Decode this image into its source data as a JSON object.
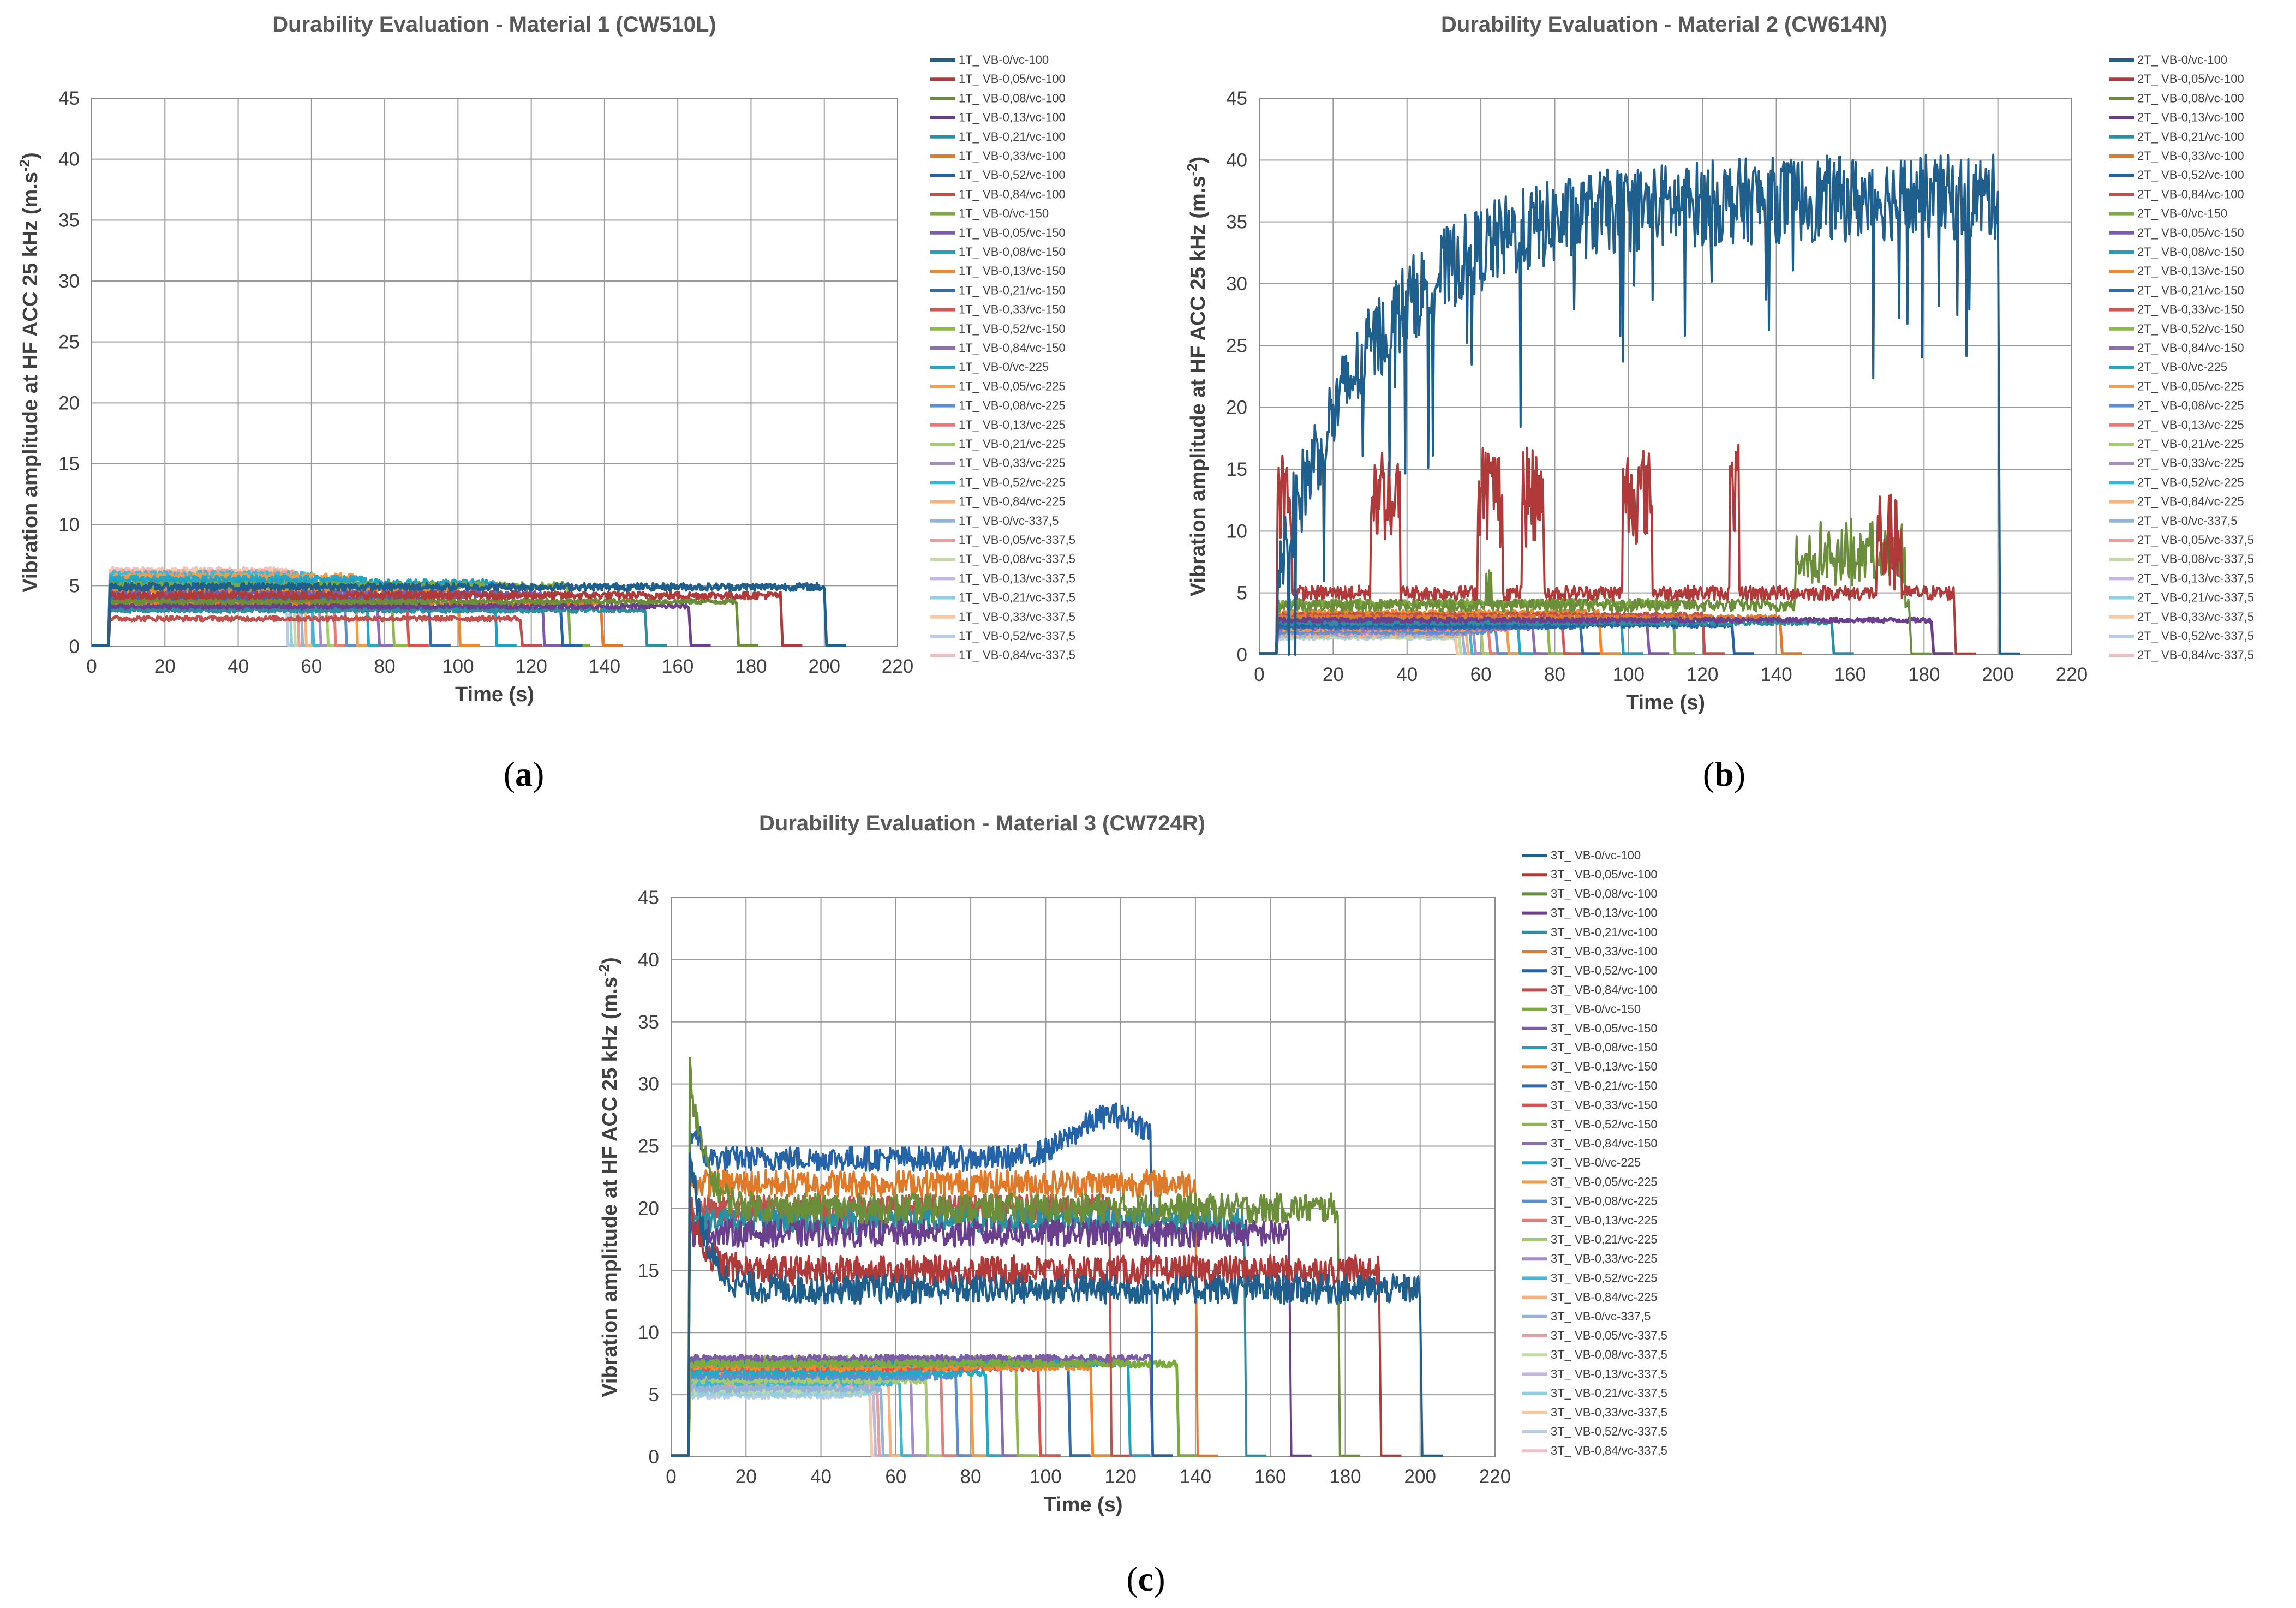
{
  "chart_data": [
    {
      "id": "a",
      "type": "line",
      "title": "Durability Evaluation - Material 1 (CW510L)",
      "xlabel": "Time (s)",
      "ylabel": "Vibration amplitude at HF ACC 25 kHz (m.s",
      "ylabel_sup": "-2",
      "ylabel_close": ")",
      "xlim": [
        0,
        220
      ],
      "ylim": [
        0,
        45
      ],
      "xticks": [
        0,
        20,
        40,
        60,
        80,
        100,
        120,
        140,
        160,
        180,
        200,
        220
      ],
      "yticks": [
        0,
        5,
        10,
        15,
        20,
        25,
        30,
        35,
        40,
        45
      ],
      "caption_open": "(",
      "caption_letter": "a",
      "caption_close": ")",
      "series": [
        {
          "name": "1T_ VB-0/vc-100",
          "color": "#1F5F8E",
          "start": 5,
          "end": 200,
          "level": 4.9
        },
        {
          "name": "1T_ VB-0,05/vc-100",
          "color": "#B03A3A",
          "start": 5,
          "end": 188,
          "level": 4.2
        },
        {
          "name": "1T_ VB-0,08/vc-100",
          "color": "#6A8E3A",
          "start": 5,
          "end": 176,
          "level": 3.7
        },
        {
          "name": "1T_ VB-0,13/vc-100",
          "color": "#6A3F8E",
          "start": 5,
          "end": 163,
          "level": 3.3
        },
        {
          "name": "1T_ VB-0,21/vc-100",
          "color": "#2A8FA0",
          "start": 5,
          "end": 151,
          "level": 3.0
        },
        {
          "name": "1T_ VB-0,33/vc-100",
          "color": "#E07A28",
          "start": 5,
          "end": 139,
          "level": 3.5
        },
        {
          "name": "1T_ VB-0,52/vc-100",
          "color": "#2563A8",
          "start": 5,
          "end": 128,
          "level": 3.1
        },
        {
          "name": "1T_ VB-0,84/vc-100",
          "color": "#C0504D",
          "start": 5,
          "end": 117,
          "level": 2.3
        },
        {
          "name": "1T_ VB-0/vc-150",
          "color": "#7BAA3F",
          "start": 5,
          "end": 130,
          "level": 5.0
        },
        {
          "name": "1T_ VB-0,05/vc-150",
          "color": "#7D5BA6",
          "start": 5,
          "end": 123,
          "level": 4.3
        },
        {
          "name": "1T_ VB-0,08/vc-150",
          "color": "#1FA0C0",
          "start": 5,
          "end": 110,
          "level": 5.2
        },
        {
          "name": "1T_ VB-0,13/vc-150",
          "color": "#F0892E",
          "start": 5,
          "end": 100,
          "level": 4.6
        },
        {
          "name": "1T_ VB-0,21/vc-150",
          "color": "#2F6DB0",
          "start": 5,
          "end": 92,
          "level": 4.0
        },
        {
          "name": "1T_ VB-0,33/vc-150",
          "color": "#D9534F",
          "start": 5,
          "end": 86,
          "level": 3.8
        },
        {
          "name": "1T_ VB-0,52/vc-150",
          "color": "#8DB84A",
          "start": 5,
          "end": 82,
          "level": 3.6
        },
        {
          "name": "1T_ VB-0,84/vc-150",
          "color": "#8E6BB8",
          "start": 5,
          "end": 78,
          "level": 3.2
        },
        {
          "name": "1T_ VB-0/vc-225",
          "color": "#22A8C8",
          "start": 5,
          "end": 75,
          "level": 5.5
        },
        {
          "name": "1T_ VB-0,05/vc-225",
          "color": "#F59A45",
          "start": 5,
          "end": 72,
          "level": 5.7
        },
        {
          "name": "1T_ VB-0,08/vc-225",
          "color": "#5B8FD0",
          "start": 5,
          "end": 69,
          "level": 5.0
        },
        {
          "name": "1T_ VB-0,13/vc-225",
          "color": "#E87A78",
          "start": 5,
          "end": 66,
          "level": 4.8
        },
        {
          "name": "1T_ VB-0,21/vc-225",
          "color": "#A5CC6B",
          "start": 5,
          "end": 64,
          "level": 4.4
        },
        {
          "name": "1T_ VB-0,33/vc-225",
          "color": "#A58CC8",
          "start": 5,
          "end": 62,
          "level": 4.1
        },
        {
          "name": "1T_ VB-0,52/vc-225",
          "color": "#3BB8D8",
          "start": 5,
          "end": 60,
          "level": 5.9
        },
        {
          "name": "1T_ VB-0,84/vc-225",
          "color": "#F8B27A",
          "start": 5,
          "end": 58,
          "level": 5.6
        },
        {
          "name": "1T_ VB-0/vc-337,5",
          "color": "#95B3D7",
          "start": 5,
          "end": 57,
          "level": 5.4
        },
        {
          "name": "1T_ VB-0,05/vc-337,5",
          "color": "#E6A0A0",
          "start": 5,
          "end": 56,
          "level": 6.0
        },
        {
          "name": "1T_ VB-0,08/vc-337,5",
          "color": "#C3DBA0",
          "start": 5,
          "end": 55,
          "level": 5.8
        },
        {
          "name": "1T_ VB-0,13/vc-337,5",
          "color": "#C5B5DA",
          "start": 5,
          "end": 55,
          "level": 5.5
        },
        {
          "name": "1T_ VB-0,21/vc-337,5",
          "color": "#8ECFE0",
          "start": 5,
          "end": 54,
          "level": 5.3
        },
        {
          "name": "1T_ VB-0,33/vc-337,5",
          "color": "#FAC8A0",
          "start": 5,
          "end": 54,
          "level": 6.1
        },
        {
          "name": "1T_ VB-0,52/vc-337,5",
          "color": "#B8CCE4",
          "start": 5,
          "end": 53,
          "level": 5.0
        },
        {
          "name": "1T_ VB-0,84/vc-337,5",
          "color": "#F0C0C0",
          "start": 5,
          "end": 53,
          "level": 6.2
        }
      ]
    },
    {
      "id": "b",
      "type": "line",
      "title": "Durability Evaluation - Material 2 (CW614N)",
      "xlabel": "Time (s)",
      "ylabel": "Vibration amplitude at HF ACC 25 kHz (m.s",
      "ylabel_sup": "-2",
      "ylabel_close": ")",
      "xlim": [
        0,
        220
      ],
      "ylim": [
        0,
        45
      ],
      "xticks": [
        0,
        20,
        40,
        60,
        80,
        100,
        120,
        140,
        160,
        180,
        200,
        220
      ],
      "yticks": [
        0,
        5,
        10,
        15,
        20,
        25,
        30,
        35,
        40,
        45
      ],
      "caption_open": "(",
      "caption_letter": "b",
      "caption_close": ")",
      "series": [
        {
          "name": "2T_ VB-0/vc-100",
          "color": "#1F5F8E",
          "start": 5,
          "end": 200,
          "level": 34,
          "profile": "rise"
        },
        {
          "name": "2T_ VB-0,05/vc-100",
          "color": "#B03A3A",
          "start": 5,
          "end": 188,
          "level": 5,
          "profile": "spiky",
          "amp": 8
        },
        {
          "name": "2T_ VB-0,08/vc-100",
          "color": "#6A8E3A",
          "start": 5,
          "end": 176,
          "level": 4,
          "profile": "burst",
          "amp": 6
        },
        {
          "name": "2T_ VB-0,13/vc-100",
          "color": "#6A3F8E",
          "start": 5,
          "end": 182,
          "level": 2.8
        },
        {
          "name": "2T_ VB-0,21/vc-100",
          "color": "#2A8FA0",
          "start": 5,
          "end": 155,
          "level": 2.6
        },
        {
          "name": "2T_ VB-0,33/vc-100",
          "color": "#E07A28",
          "start": 5,
          "end": 141,
          "level": 3.0
        },
        {
          "name": "2T_ VB-0,52/vc-100",
          "color": "#2563A8",
          "start": 5,
          "end": 128,
          "level": 2.4
        },
        {
          "name": "2T_ VB-0,84/vc-100",
          "color": "#C0504D",
          "start": 5,
          "end": 120,
          "level": 3.2
        },
        {
          "name": "2T_ VB-0/vc-150",
          "color": "#7BAA3F",
          "start": 5,
          "end": 112,
          "level": 4.2
        },
        {
          "name": "2T_ VB-0,05/vc-150",
          "color": "#7D5BA6",
          "start": 5,
          "end": 105,
          "level": 2.6
        },
        {
          "name": "2T_ VB-0,08/vc-150",
          "color": "#1FA0C0",
          "start": 5,
          "end": 98,
          "level": 2.9
        },
        {
          "name": "2T_ VB-0,13/vc-150",
          "color": "#F0892E",
          "start": 5,
          "end": 92,
          "level": 3.4
        },
        {
          "name": "2T_ VB-0,21/vc-150",
          "color": "#2F6DB0",
          "start": 5,
          "end": 87,
          "level": 2.3
        },
        {
          "name": "2T_ VB-0,33/vc-150",
          "color": "#D9534F",
          "start": 5,
          "end": 82,
          "level": 2.5
        },
        {
          "name": "2T_ VB-0,52/vc-150",
          "color": "#8DB84A",
          "start": 5,
          "end": 78,
          "level": 2.8
        },
        {
          "name": "2T_ VB-0,84/vc-150",
          "color": "#8E6BB8",
          "start": 5,
          "end": 74,
          "level": 2.2
        },
        {
          "name": "2T_ VB-0/vc-225",
          "color": "#22A8C8",
          "start": 5,
          "end": 70,
          "level": 2.4
        },
        {
          "name": "2T_ VB-0,05/vc-225",
          "color": "#F59A45",
          "start": 5,
          "end": 67,
          "level": 2.1
        },
        {
          "name": "2T_ VB-0,08/vc-225",
          "color": "#5B8FD0",
          "start": 5,
          "end": 64,
          "level": 1.9
        },
        {
          "name": "2T_ VB-0,13/vc-225",
          "color": "#E87A78",
          "start": 5,
          "end": 62,
          "level": 2.0
        },
        {
          "name": "2T_ VB-0,21/vc-225",
          "color": "#A5CC6B",
          "start": 5,
          "end": 60,
          "level": 2.3
        },
        {
          "name": "2T_ VB-0,33/vc-225",
          "color": "#A58CC8",
          "start": 5,
          "end": 58,
          "level": 1.8
        },
        {
          "name": "2T_ VB-0,52/vc-225",
          "color": "#3BB8D8",
          "start": 5,
          "end": 57,
          "level": 2.0
        },
        {
          "name": "2T_ VB-0,84/vc-225",
          "color": "#F8B27A",
          "start": 5,
          "end": 56,
          "level": 1.7
        },
        {
          "name": "2T_ VB-0/vc-337,5",
          "color": "#95B3D7",
          "start": 5,
          "end": 55,
          "level": 1.6
        },
        {
          "name": "2T_ VB-0,05/vc-337,5",
          "color": "#E6A0A0",
          "start": 5,
          "end": 55,
          "level": 1.8
        },
        {
          "name": "2T_ VB-0,08/vc-337,5",
          "color": "#C3DBA0",
          "start": 5,
          "end": 54,
          "level": 1.5
        },
        {
          "name": "2T_ VB-0,13/vc-337,5",
          "color": "#C5B5DA",
          "start": 5,
          "end": 54,
          "level": 1.7
        },
        {
          "name": "2T_ VB-0,21/vc-337,5",
          "color": "#8ECFE0",
          "start": 5,
          "end": 54,
          "level": 1.6
        },
        {
          "name": "2T_ VB-0,33/vc-337,5",
          "color": "#FAC8A0",
          "start": 5,
          "end": 53,
          "level": 1.9
        },
        {
          "name": "2T_ VB-0,52/vc-337,5",
          "color": "#B8CCE4",
          "start": 5,
          "end": 53,
          "level": 1.4
        },
        {
          "name": "2T_ VB-0,84/vc-337,5",
          "color": "#F0C0C0",
          "start": 5,
          "end": 53,
          "level": 1.5
        }
      ]
    },
    {
      "id": "c",
      "type": "line",
      "title": "Durability Evaluation - Material 3 (CW724R)",
      "xlabel": "Time (s)",
      "ylabel": "Vibration amplitude at HF ACC 25 kHz (m.s",
      "ylabel_sup": "-2",
      "ylabel_close": ")",
      "xlim": [
        0,
        220
      ],
      "ylim": [
        0,
        45
      ],
      "xticks": [
        0,
        20,
        40,
        60,
        80,
        100,
        120,
        140,
        160,
        180,
        200,
        220
      ],
      "yticks": [
        0,
        5,
        10,
        15,
        20,
        25,
        30,
        35,
        40,
        45
      ],
      "caption_open": "(",
      "caption_letter": "c",
      "caption_close": ")",
      "series": [
        {
          "name": "3T_ VB-0/vc-100",
          "color": "#1F5F8E",
          "start": 5,
          "end": 200,
          "level": 13.5,
          "profile": "drop",
          "peak": 25
        },
        {
          "name": "3T_ VB-0,05/vc-100",
          "color": "#B03A3A",
          "start": 5,
          "end": 189,
          "level": 15,
          "profile": "drop",
          "peak": 20
        },
        {
          "name": "3T_ VB-0,08/vc-100",
          "color": "#6A8E3A",
          "start": 5,
          "end": 178,
          "level": 20,
          "profile": "drop",
          "peak": 31
        },
        {
          "name": "3T_ VB-0,13/vc-100",
          "color": "#6A3F8E",
          "start": 5,
          "end": 165,
          "level": 18,
          "profile": "flat"
        },
        {
          "name": "3T_ VB-0,21/vc-100",
          "color": "#2A8FA0",
          "start": 5,
          "end": 153,
          "level": 19,
          "profile": "flat"
        },
        {
          "name": "3T_ VB-0,33/vc-100",
          "color": "#E07A28",
          "start": 5,
          "end": 140,
          "level": 22,
          "profile": "flat"
        },
        {
          "name": "3T_ VB-0,52/vc-100",
          "color": "#2563A8",
          "start": 5,
          "end": 128,
          "level": 24,
          "profile": "hump"
        },
        {
          "name": "3T_ VB-0,84/vc-100",
          "color": "#C0504D",
          "start": 5,
          "end": 117,
          "level": 20,
          "profile": "flat"
        },
        {
          "name": "3T_ VB-0/vc-150",
          "color": "#7BAA3F",
          "start": 5,
          "end": 135,
          "level": 7.5
        },
        {
          "name": "3T_ VB-0,05/vc-150",
          "color": "#7D5BA6",
          "start": 5,
          "end": 128,
          "level": 7.9
        },
        {
          "name": "3T_ VB-0,08/vc-150",
          "color": "#1FA0C0",
          "start": 5,
          "end": 122,
          "level": 7.6
        },
        {
          "name": "3T_ VB-0,13/vc-150",
          "color": "#F0892E",
          "start": 5,
          "end": 112,
          "level": 7.3
        },
        {
          "name": "3T_ VB-0,21/vc-150",
          "color": "#2F6DB0",
          "start": 5,
          "end": 106,
          "level": 7.6
        },
        {
          "name": "3T_ VB-0,33/vc-150",
          "color": "#D9534F",
          "start": 5,
          "end": 98,
          "level": 7.2
        },
        {
          "name": "3T_ VB-0,52/vc-150",
          "color": "#8DB84A",
          "start": 5,
          "end": 92,
          "level": 7.8
        },
        {
          "name": "3T_ VB-0,84/vc-150",
          "color": "#8E6BB8",
          "start": 5,
          "end": 88,
          "level": 7.4
        },
        {
          "name": "3T_ VB-0/vc-225",
          "color": "#22A8C8",
          "start": 5,
          "end": 84,
          "level": 6.8
        },
        {
          "name": "3T_ VB-0,05/vc-225",
          "color": "#F59A45",
          "start": 5,
          "end": 80,
          "level": 7.0
        },
        {
          "name": "3T_ VB-0,08/vc-225",
          "color": "#5B8FD0",
          "start": 5,
          "end": 76,
          "level": 6.5
        },
        {
          "name": "3T_ VB-0,13/vc-225",
          "color": "#E87A78",
          "start": 5,
          "end": 72,
          "level": 6.9
        },
        {
          "name": "3T_ VB-0,21/vc-225",
          "color": "#A5CC6B",
          "start": 5,
          "end": 68,
          "level": 6.2
        },
        {
          "name": "3T_ VB-0,33/vc-225",
          "color": "#A58CC8",
          "start": 5,
          "end": 64,
          "level": 6.4
        },
        {
          "name": "3T_ VB-0,52/vc-225",
          "color": "#3BB8D8",
          "start": 5,
          "end": 61,
          "level": 6.0
        },
        {
          "name": "3T_ VB-0,84/vc-225",
          "color": "#F8B27A",
          "start": 5,
          "end": 58,
          "level": 6.3
        },
        {
          "name": "3T_ VB-0/vc-337,5",
          "color": "#95B3D7",
          "start": 5,
          "end": 56,
          "level": 5.5
        },
        {
          "name": "3T_ VB-0,05/vc-337,5",
          "color": "#E6A0A0",
          "start": 5,
          "end": 55,
          "level": 5.9
        },
        {
          "name": "3T_ VB-0,08/vc-337,5",
          "color": "#C3DBA0",
          "start": 5,
          "end": 55,
          "level": 5.4
        },
        {
          "name": "3T_ VB-0,13/vc-337,5",
          "color": "#C5B5DA",
          "start": 5,
          "end": 54,
          "level": 5.7
        },
        {
          "name": "3T_ VB-0,21/vc-337,5",
          "color": "#8ECFE0",
          "start": 5,
          "end": 54,
          "level": 5.2
        },
        {
          "name": "3T_ VB-0,33/vc-337,5",
          "color": "#FAC8A0",
          "start": 5,
          "end": 53,
          "level": 6.1
        },
        {
          "name": "3T_ VB-0,52/vc-337,5",
          "color": "#B8CCE4",
          "start": 5,
          "end": 53,
          "level": 5.0
        },
        {
          "name": "3T_ VB-0,84/vc-337,5",
          "color": "#F0C0C0",
          "start": 5,
          "end": 53,
          "level": 5.8
        }
      ]
    }
  ]
}
